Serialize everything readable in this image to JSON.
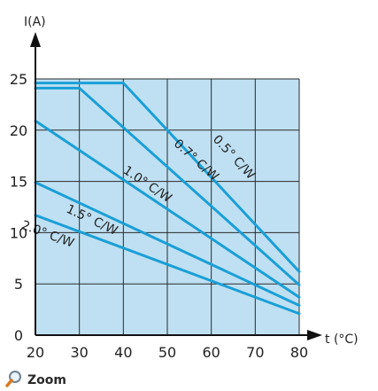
{
  "chart_data": {
    "type": "line",
    "ylabel": "I(A)",
    "xlabel": "t (°C)",
    "xlim": [
      20,
      80
    ],
    "ylim": [
      0,
      25
    ],
    "x_ticks": [
      20,
      30,
      40,
      50,
      60,
      70,
      80
    ],
    "y_ticks": [
      0,
      5,
      10,
      15,
      20,
      25
    ],
    "grid": true,
    "colors": {
      "plot_background": "#bfe0f2",
      "series_line": "#1a9fd6",
      "grid": "#2a2a2a"
    },
    "series": [
      {
        "name": "0.5° C/W",
        "points": [
          [
            20,
            24.6
          ],
          [
            40,
            24.6
          ],
          [
            80,
            6.2
          ]
        ]
      },
      {
        "name": "0.7° C/W",
        "points": [
          [
            20,
            24.1
          ],
          [
            30,
            24.1
          ],
          [
            80,
            4.9
          ]
        ]
      },
      {
        "name": "1.0° C/W",
        "points": [
          [
            20,
            20.9
          ],
          [
            80,
            3.7
          ]
        ]
      },
      {
        "name": "1.5° C/W",
        "points": [
          [
            20,
            14.9
          ],
          [
            80,
            2.9
          ]
        ]
      },
      {
        "name": "2.0° C/W",
        "points": [
          [
            20,
            11.7
          ],
          [
            80,
            2.1
          ]
        ]
      }
    ]
  },
  "zoom": {
    "label": "Zoom",
    "icon": "magnifier-icon"
  }
}
